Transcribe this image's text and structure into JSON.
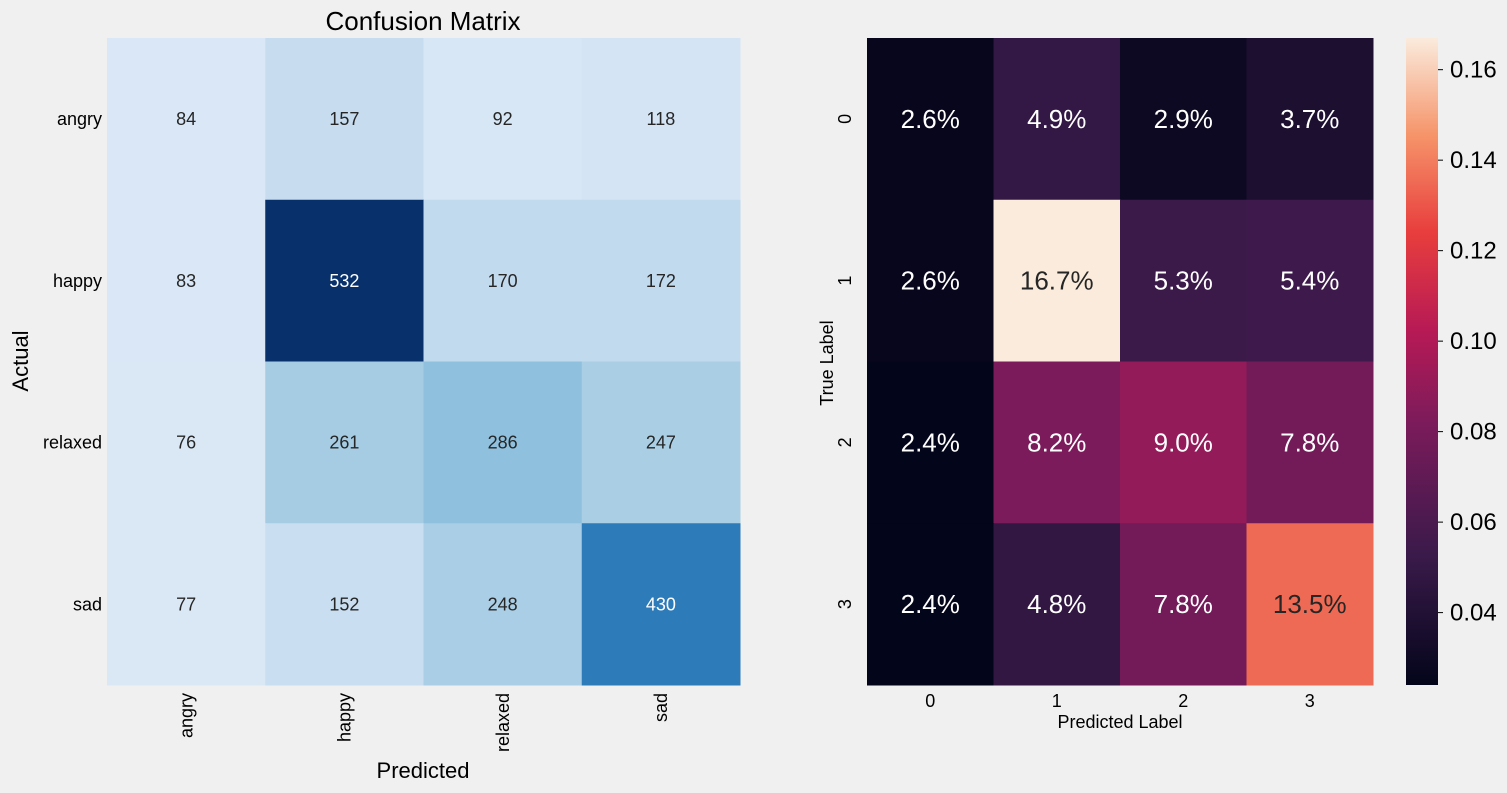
{
  "chart_data": [
    {
      "type": "heatmap",
      "title": "Confusion Matrix",
      "xlabel": "Predicted",
      "ylabel": "Actual",
      "x_categories": [
        "angry",
        "happy",
        "relaxed",
        "sad"
      ],
      "y_categories": [
        "angry",
        "happy",
        "relaxed",
        "sad"
      ],
      "values": [
        [
          84,
          157,
          92,
          118
        ],
        [
          83,
          532,
          170,
          172
        ],
        [
          76,
          261,
          286,
          247
        ],
        [
          77,
          152,
          248,
          430
        ]
      ],
      "value_labels": [
        [
          "84",
          "157",
          "92",
          "118"
        ],
        [
          "83",
          "532",
          "170",
          "172"
        ],
        [
          "76",
          "261",
          "286",
          "247"
        ],
        [
          "77",
          "152",
          "248",
          "430"
        ]
      ],
      "colormap": "Blues",
      "colorbar": false
    },
    {
      "type": "heatmap",
      "title": "",
      "xlabel": "Predicted Label",
      "ylabel": "True Label",
      "x_categories": [
        "0",
        "1",
        "2",
        "3"
      ],
      "y_categories": [
        "0",
        "1",
        "2",
        "3"
      ],
      "values": [
        [
          0.026,
          0.049,
          0.029,
          0.037
        ],
        [
          0.026,
          0.167,
          0.053,
          0.054
        ],
        [
          0.024,
          0.082,
          0.09,
          0.078
        ],
        [
          0.024,
          0.048,
          0.078,
          0.135
        ]
      ],
      "value_labels": [
        [
          "2.6%",
          "4.9%",
          "2.9%",
          "3.7%"
        ],
        [
          "2.6%",
          "16.7%",
          "5.3%",
          "5.4%"
        ],
        [
          "2.4%",
          "8.2%",
          "9.0%",
          "7.8%"
        ],
        [
          "2.4%",
          "4.8%",
          "7.8%",
          "13.5%"
        ]
      ],
      "colormap": "rocket",
      "colorbar": true,
      "colorbar_range": [
        0.024,
        0.167
      ],
      "colorbar_ticks": [
        0.04,
        0.06,
        0.08,
        0.1,
        0.12,
        0.14,
        0.16
      ],
      "colorbar_tick_labels": [
        "0.04",
        "0.06",
        "0.08",
        "0.10",
        "0.12",
        "0.14",
        "0.16"
      ]
    }
  ]
}
